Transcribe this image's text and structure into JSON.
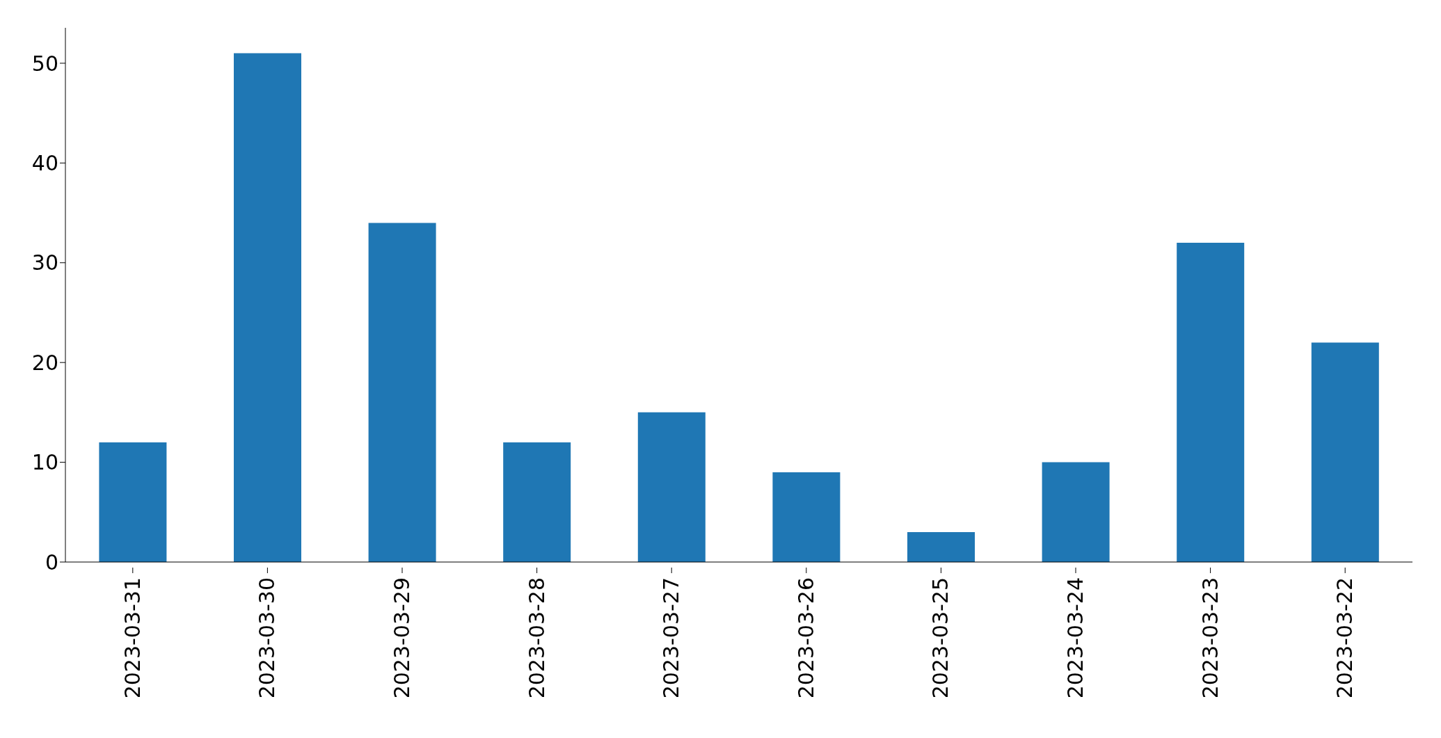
{
  "chart_data": {
    "type": "bar",
    "categories": [
      "2023-03-31",
      "2023-03-30",
      "2023-03-29",
      "2023-03-28",
      "2023-03-27",
      "2023-03-26",
      "2023-03-25",
      "2023-03-24",
      "2023-03-23",
      "2023-03-22"
    ],
    "values": [
      12,
      51,
      34,
      12,
      15,
      9,
      3,
      10,
      32,
      22
    ],
    "color": "#1f77b4",
    "ylim": [
      0,
      53.55
    ],
    "yticks": [
      0,
      10,
      20,
      30,
      40,
      50
    ]
  }
}
